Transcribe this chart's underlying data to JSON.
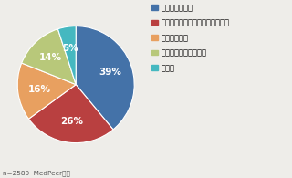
{
  "labels": [
    "運転を禁止する",
    "認知症のランクに応じて禁止する",
    "説明のみ行う",
    "特に対応はしていない",
    "その他"
  ],
  "values": [
    39,
    26,
    16,
    14,
    5
  ],
  "colors": [
    "#4472a8",
    "#b94040",
    "#e8a060",
    "#b8c87a",
    "#45b8c0"
  ],
  "pct_labels": [
    "39%",
    "26%",
    "16%",
    "14%",
    "5%"
  ],
  "note": "n=2580  MedPeer調べ",
  "background_color": "#eeede9",
  "legend_fontsize": 6.0,
  "pct_fontsize": 7.5
}
